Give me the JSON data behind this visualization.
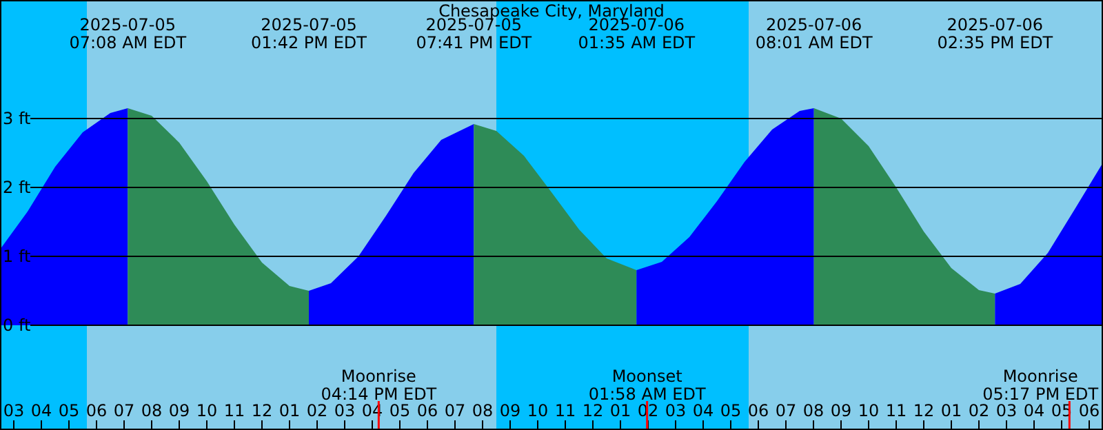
{
  "chart_data": {
    "type": "area",
    "title": "Chesapeake City, Maryland",
    "xlim": [
      "2025-07-05T02:30",
      "2025-07-06T18:30"
    ],
    "ylim": [
      -1.52,
      4.72
    ],
    "xticks": [
      {
        "value": "2025-07-05T03:00",
        "label": "03"
      },
      {
        "value": "2025-07-05T04:00",
        "label": "04"
      },
      {
        "value": "2025-07-05T05:00",
        "label": "05"
      },
      {
        "value": "2025-07-05T06:00",
        "label": "06"
      },
      {
        "value": "2025-07-05T07:00",
        "label": "07"
      },
      {
        "value": "2025-07-05T08:00",
        "label": "08"
      },
      {
        "value": "2025-07-05T09:00",
        "label": "09"
      },
      {
        "value": "2025-07-05T10:00",
        "label": "10"
      },
      {
        "value": "2025-07-05T11:00",
        "label": "11"
      },
      {
        "value": "2025-07-05T12:00",
        "label": "12"
      },
      {
        "value": "2025-07-05T13:00",
        "label": "01"
      },
      {
        "value": "2025-07-05T14:00",
        "label": "02"
      },
      {
        "value": "2025-07-05T15:00",
        "label": "03"
      },
      {
        "value": "2025-07-05T16:00",
        "label": "04"
      },
      {
        "value": "2025-07-05T17:00",
        "label": "05"
      },
      {
        "value": "2025-07-05T18:00",
        "label": "06"
      },
      {
        "value": "2025-07-05T19:00",
        "label": "07"
      },
      {
        "value": "2025-07-05T20:00",
        "label": "08"
      },
      {
        "value": "2025-07-05T21:00",
        "label": "09"
      },
      {
        "value": "2025-07-05T22:00",
        "label": "10"
      },
      {
        "value": "2025-07-05T23:00",
        "label": "11"
      },
      {
        "value": "2025-07-06T00:00",
        "label": "12"
      },
      {
        "value": "2025-07-06T01:00",
        "label": "01"
      },
      {
        "value": "2025-07-06T02:00",
        "label": "02"
      },
      {
        "value": "2025-07-06T03:00",
        "label": "03"
      },
      {
        "value": "2025-07-06T04:00",
        "label": "04"
      },
      {
        "value": "2025-07-06T05:00",
        "label": "05"
      },
      {
        "value": "2025-07-06T06:00",
        "label": "06"
      },
      {
        "value": "2025-07-06T07:00",
        "label": "07"
      },
      {
        "value": "2025-07-06T08:00",
        "label": "08"
      },
      {
        "value": "2025-07-06T09:00",
        "label": "09"
      },
      {
        "value": "2025-07-06T10:00",
        "label": "10"
      },
      {
        "value": "2025-07-06T11:00",
        "label": "11"
      },
      {
        "value": "2025-07-06T12:00",
        "label": "12"
      },
      {
        "value": "2025-07-06T13:00",
        "label": "01"
      },
      {
        "value": "2025-07-06T14:00",
        "label": "02"
      },
      {
        "value": "2025-07-06T15:00",
        "label": "03"
      },
      {
        "value": "2025-07-06T16:00",
        "label": "04"
      },
      {
        "value": "2025-07-06T17:00",
        "label": "05"
      },
      {
        "value": "2025-07-06T18:00",
        "label": "06"
      }
    ],
    "yticks": [
      {
        "value": 0,
        "label": "0 ft"
      },
      {
        "value": 1,
        "label": "1 ft"
      },
      {
        "value": 2,
        "label": "2 ft"
      },
      {
        "value": 3,
        "label": "3 ft"
      }
    ],
    "grid": "y",
    "series": [
      {
        "color": "#0000ff",
        "x": [
          "2025-07-05T02:30",
          "2025-07-05T03:30",
          "2025-07-05T04:30",
          "2025-07-05T05:30",
          "2025-07-05T06:30",
          "2025-07-05T07:08"
        ],
        "values": [
          1.1,
          1.65,
          2.3,
          2.8,
          3.08,
          3.15
        ]
      },
      {
        "color": "#2e8b57",
        "x": [
          "2025-07-05T07:08",
          "2025-07-05T08:00",
          "2025-07-05T09:00",
          "2025-07-05T10:00",
          "2025-07-05T11:00",
          "2025-07-05T12:00",
          "2025-07-05T13:00",
          "2025-07-05T13:42"
        ],
        "values": [
          3.15,
          3.04,
          2.65,
          2.09,
          1.46,
          0.91,
          0.57,
          0.5
        ]
      },
      {
        "color": "#0000ff",
        "x": [
          "2025-07-05T13:42",
          "2025-07-05T14:30",
          "2025-07-05T15:30",
          "2025-07-05T16:30",
          "2025-07-05T17:30",
          "2025-07-05T18:30",
          "2025-07-05T19:41"
        ],
        "values": [
          0.5,
          0.61,
          1.0,
          1.59,
          2.21,
          2.69,
          2.92
        ]
      },
      {
        "color": "#2e8b57",
        "x": [
          "2025-07-05T19:41",
          "2025-07-05T20:30",
          "2025-07-05T21:30",
          "2025-07-05T22:30",
          "2025-07-05T23:30",
          "2025-07-06T00:30",
          "2025-07-06T01:35"
        ],
        "values": [
          2.92,
          2.82,
          2.46,
          1.93,
          1.39,
          0.97,
          0.8
        ]
      },
      {
        "color": "#0000ff",
        "x": [
          "2025-07-06T01:35",
          "2025-07-06T02:30",
          "2025-07-06T03:30",
          "2025-07-06T04:30",
          "2025-07-06T05:30",
          "2025-07-06T06:30",
          "2025-07-06T07:30",
          "2025-07-06T08:01"
        ],
        "values": [
          0.8,
          0.92,
          1.28,
          1.8,
          2.37,
          2.84,
          3.11,
          3.15
        ]
      },
      {
        "color": "#2e8b57",
        "x": [
          "2025-07-06T08:01",
          "2025-07-06T09:00",
          "2025-07-06T10:00",
          "2025-07-06T11:00",
          "2025-07-06T12:00",
          "2025-07-06T13:00",
          "2025-07-06T14:00",
          "2025-07-06T14:35"
        ],
        "values": [
          3.15,
          3.0,
          2.6,
          2.0,
          1.36,
          0.83,
          0.51,
          0.46
        ]
      },
      {
        "color": "#0000ff",
        "x": [
          "2025-07-06T14:35",
          "2025-07-06T15:30",
          "2025-07-06T16:30",
          "2025-07-06T17:30",
          "2025-07-06T18:30"
        ],
        "values": [
          0.46,
          0.6,
          1.05,
          1.7,
          2.36
        ]
      }
    ],
    "bands": [
      {
        "axis": "x",
        "from": "2025-07-05T02:30",
        "to": "2025-07-05T05:39",
        "color": "#00bfff"
      },
      {
        "axis": "x",
        "from": "2025-07-05T05:39",
        "to": "2025-07-05T20:30",
        "color": "#87ceeb"
      },
      {
        "axis": "x",
        "from": "2025-07-05T20:30",
        "to": "2025-07-06T05:39",
        "color": "#00bfff"
      },
      {
        "axis": "x",
        "from": "2025-07-06T05:39",
        "to": "2025-07-06T18:30",
        "color": "#87ceeb"
      }
    ],
    "ref_lines": [
      {
        "axis": "x",
        "value": "2025-07-05T16:14",
        "label": "Moonrise\n04:14 PM EDT",
        "color": "#ff0000"
      },
      {
        "axis": "x",
        "value": "2025-07-06T01:58",
        "label": "Moonset\n01:58 AM EDT",
        "color": "#ff0000"
      },
      {
        "axis": "x",
        "value": "2025-07-06T17:17",
        "label": "Moonrise\n05:17 PM EDT",
        "color": "#ff0000"
      }
    ],
    "annotations": [
      "2025-07-05\n07:08 AM EDT",
      "2025-07-05\n01:42 PM EDT",
      "2025-07-05\n07:41 PM EDT",
      "2025-07-06\n01:35 AM EDT",
      "2025-07-06\n08:01 AM EDT",
      "2025-07-06\n02:35 PM EDT"
    ]
  }
}
